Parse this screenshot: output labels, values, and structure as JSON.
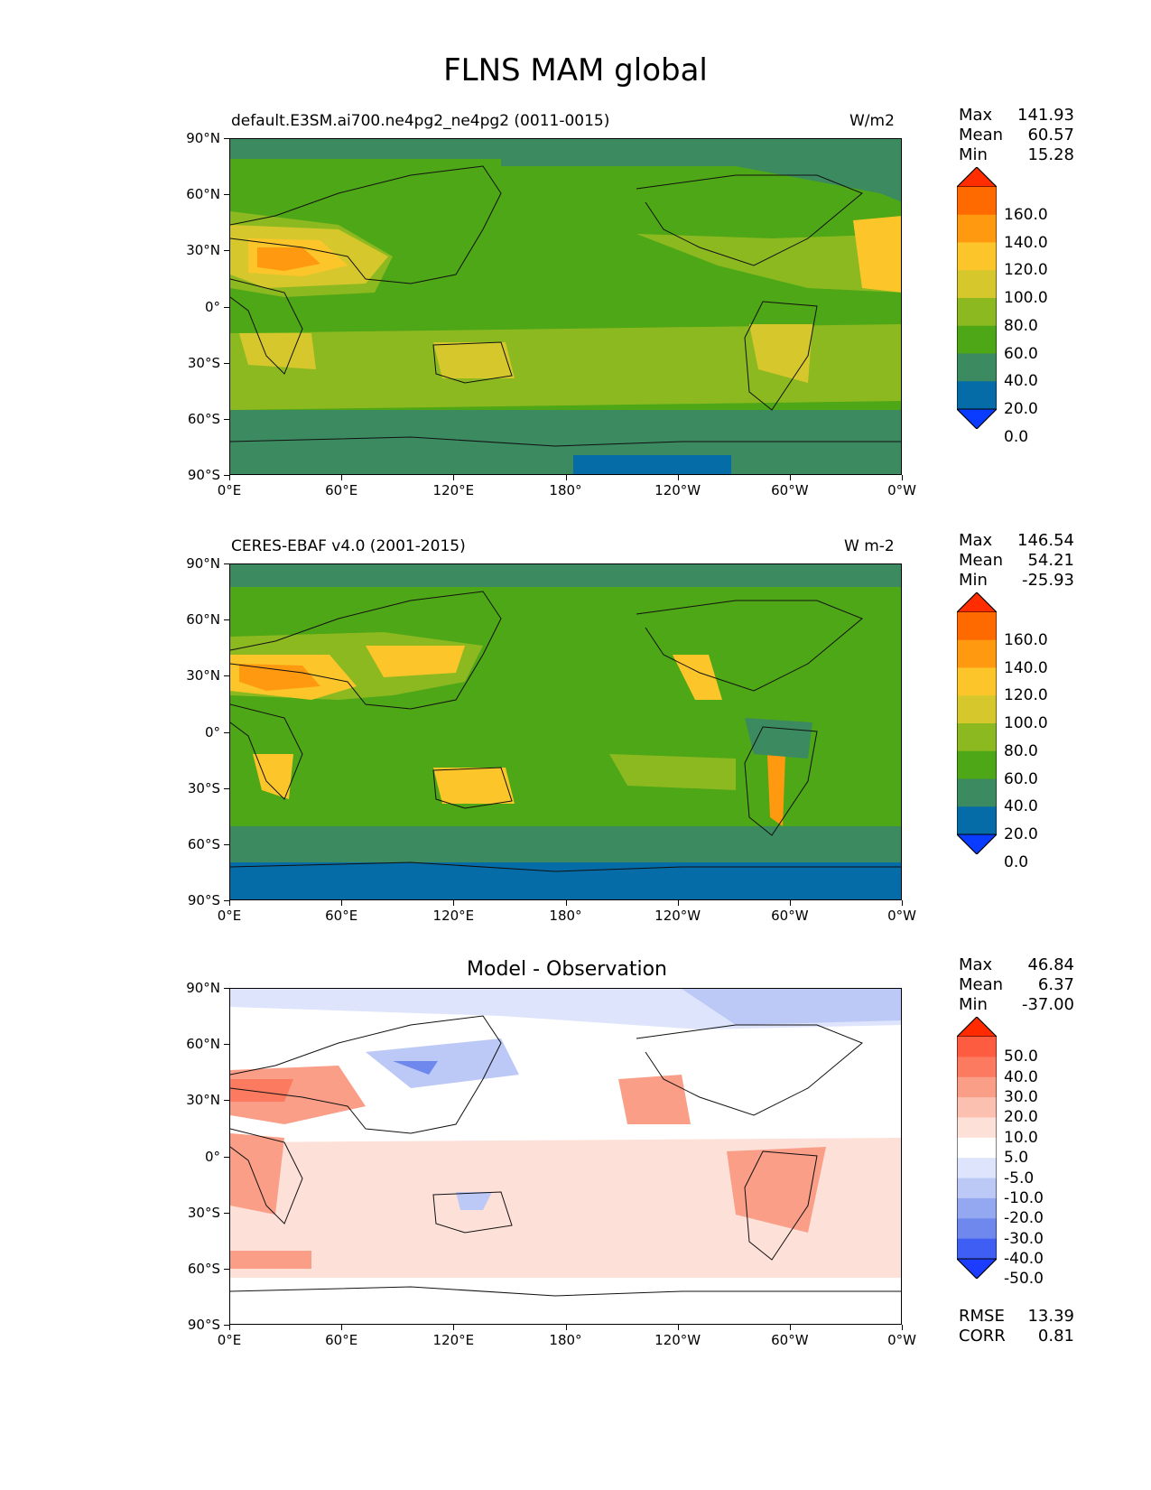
{
  "title": "FLNS MAM global",
  "panels": [
    {
      "id": "model",
      "left_label": "default.E3SM.ai700.ne4pg2_ne4pg2 (0011-0015)",
      "right_label": "W/m2",
      "center_label": "",
      "stats": [
        {
          "label": "Max",
          "value": "141.93"
        },
        {
          "label": "Mean",
          "value": "60.57"
        },
        {
          "label": "Min",
          "value": "15.28"
        }
      ],
      "colorbar": {
        "labels": [
          "160.0",
          "140.0",
          "120.0",
          "100.0",
          "80.0",
          "60.0",
          "40.0",
          "20.0",
          "0.0"
        ],
        "colors": [
          "#ff2d00",
          "#ff6a00",
          "#ff9a10",
          "#fcc62b",
          "#d6c82c",
          "#8db920",
          "#4ea716",
          "#3b8a60",
          "#056ca8",
          "#0a3cff"
        ]
      },
      "extra": []
    },
    {
      "id": "obs",
      "left_label": "CERES-EBAF v4.0 (2001-2015)",
      "right_label": "W m-2",
      "center_label": "",
      "stats": [
        {
          "label": "Max",
          "value": "146.54"
        },
        {
          "label": "Mean",
          "value": "54.21"
        },
        {
          "label": "Min",
          "value": "-25.93"
        }
      ],
      "colorbar": {
        "labels": [
          "160.0",
          "140.0",
          "120.0",
          "100.0",
          "80.0",
          "60.0",
          "40.0",
          "20.0",
          "0.0"
        ],
        "colors": [
          "#ff2d00",
          "#ff6a00",
          "#ff9a10",
          "#fcc62b",
          "#d6c82c",
          "#8db920",
          "#4ea716",
          "#3b8a60",
          "#056ca8",
          "#0a3cff"
        ]
      },
      "extra": []
    },
    {
      "id": "diff",
      "left_label": "",
      "right_label": "",
      "center_label": "Model - Observation",
      "stats": [
        {
          "label": "Max",
          "value": "46.84"
        },
        {
          "label": "Mean",
          "value": "6.37"
        },
        {
          "label": "Min",
          "value": "-37.00"
        }
      ],
      "colorbar": {
        "labels": [
          "50.0",
          "40.0",
          "30.0",
          "20.0",
          "10.0",
          "5.0",
          "-5.0",
          "-10.0",
          "-20.0",
          "-30.0",
          "-40.0",
          "-50.0"
        ],
        "colors": [
          "#ff2a00",
          "#fe5c40",
          "#fb7a60",
          "#fa9e88",
          "#fbc0b0",
          "#fde0d8",
          "#ffffff",
          "#dde4fb",
          "#bcc9f6",
          "#94a8f1",
          "#6f88ee",
          "#3f5ff4",
          "#1c3cff"
        ]
      },
      "extra": [
        {
          "label": "RMSE",
          "value": "13.39"
        },
        {
          "label": "CORR",
          "value": "0.81"
        }
      ]
    }
  ],
  "axes": {
    "y_ticks": [
      "90°N",
      "60°N",
      "30°N",
      "0°",
      "30°S",
      "60°S",
      "90°S"
    ],
    "x_ticks": [
      "0°E",
      "60°E",
      "120°E",
      "180°",
      "120°W",
      "60°W",
      "0°W"
    ]
  }
}
